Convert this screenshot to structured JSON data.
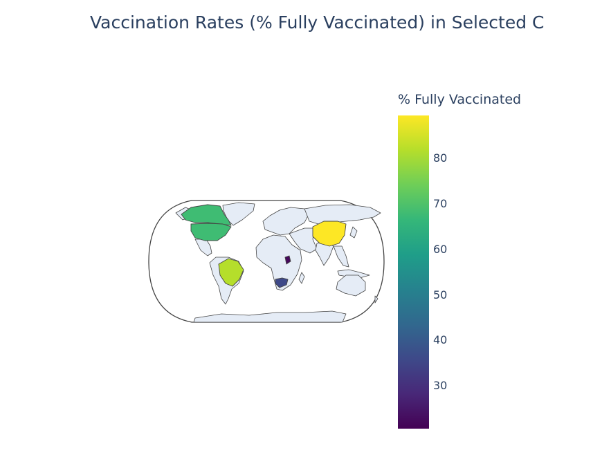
{
  "title": "Vaccination Rates (% Fully Vaccinated) in Selected C",
  "colorbar": {
    "title": "% Fully Vaccinated",
    "min": 21,
    "max": 89,
    "ticks": [
      "80",
      "70",
      "60",
      "50",
      "40",
      "30"
    ],
    "colorscale": [
      "#440154",
      "#482878",
      "#3e4989",
      "#31688e",
      "#26828e",
      "#1f9e89",
      "#35b779",
      "#6ece58",
      "#b5de2b",
      "#fde725"
    ]
  },
  "map": {
    "projection": "natural earth",
    "land_color": "#e5ecf6",
    "border_color": "#444444",
    "countries": [
      {
        "name": "China",
        "value": 89,
        "color": "#fde725"
      },
      {
        "name": "Brazil",
        "value": 80,
        "color": "#b5de2b"
      },
      {
        "name": "United States",
        "value": 68,
        "color": "#3fbc73"
      },
      {
        "name": "Canada",
        "value": 68,
        "color": "#3fbc73"
      },
      {
        "name": "South Africa",
        "value": 35,
        "color": "#3e4989"
      },
      {
        "name": "Kenya",
        "value": 22,
        "color": "#46085c"
      }
    ]
  }
}
